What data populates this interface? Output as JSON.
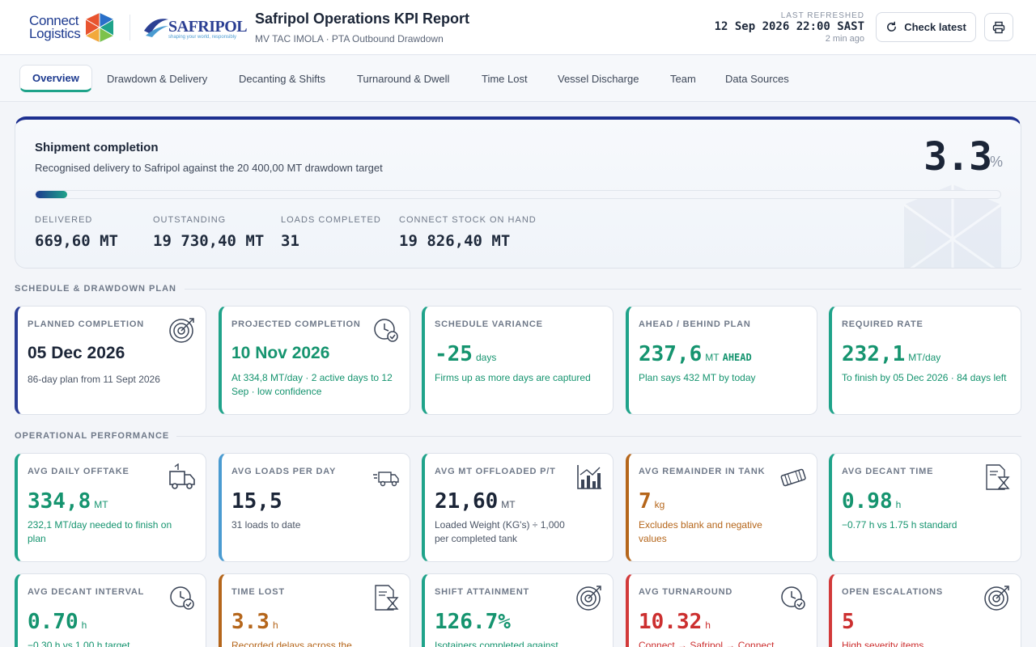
{
  "header": {
    "logo_connect": "Connect\nLogistics",
    "logo_safripol": "SAFRIPOL",
    "logo_safripol_tag": "shaping your world, responsibly",
    "title": "Safripol Operations KPI Report",
    "subtitle": "MV TAC IMOLA · PTA Outbound Drawdown",
    "refresh_label": "LAST REFRESHED",
    "refresh_time": "12 Sep 2026 22:00 SAST",
    "refresh_ago": "2 min ago",
    "check_latest": "Check latest",
    "print_icon": "printer-icon",
    "check_icon": "refresh-icon"
  },
  "tabs": [
    {
      "label": "Overview",
      "active": true
    },
    {
      "label": "Drawdown & Delivery"
    },
    {
      "label": "Decanting & Shifts"
    },
    {
      "label": "Turnaround & Dwell"
    },
    {
      "label": "Time Lost"
    },
    {
      "label": "Vessel Discharge"
    },
    {
      "label": "Team"
    },
    {
      "label": "Data Sources"
    }
  ],
  "hero": {
    "title": "Shipment completion",
    "description": "Recognised delivery to Safripol against the 20 400,00 MT drawdown target",
    "value": "3.3",
    "unit": "%",
    "progress_fraction": 0.033,
    "stats": [
      {
        "label": "DELIVERED",
        "value": "669,60 MT"
      },
      {
        "label": "OUTSTANDING",
        "value": "19 730,40 MT"
      },
      {
        "label": "LOADS COMPLETED",
        "value": "31"
      },
      {
        "label": "CONNECT STOCK ON HAND",
        "value": "19 826,40 MT"
      }
    ]
  },
  "sections": {
    "schedule": "SCHEDULE & DRAWDOWN PLAN",
    "operational": "OPERATIONAL PERFORMANCE"
  },
  "schedule_cards": [
    {
      "label": "PLANNED COMPLETION",
      "value": "05 Dec 2026",
      "unit": "",
      "note": "86-day plan from 11 Sept 2026",
      "icon": "target-icon"
    },
    {
      "label": "PROJECTED COMPLETION",
      "value": "10 Nov 2026",
      "unit": "",
      "note": "At 334,8 MT/day · 2 active days to 12 Sep · low confidence",
      "icon": "clock-check-icon"
    },
    {
      "label": "SCHEDULE VARIANCE",
      "value": "-25",
      "unit": "days",
      "note": "Firms up as more days are captured",
      "icon": ""
    },
    {
      "label": "AHEAD / BEHIND PLAN",
      "value": "237,6",
      "unit": "MT",
      "unit2": "AHEAD",
      "note": "Plan says 432 MT by today",
      "icon": ""
    },
    {
      "label": "REQUIRED RATE",
      "value": "232,1",
      "unit": "MT/day",
      "note": "To finish by 05 Dec 2026 · 84 days left",
      "icon": ""
    }
  ],
  "ops_cards_row1": [
    {
      "label": "AVG DAILY OFFTAKE",
      "value": "334,8",
      "unit": "MT",
      "note": "232,1 MT/day needed to finish on plan",
      "icon": "truck-loading-icon"
    },
    {
      "label": "AVG LOADS PER DAY",
      "value": "15,5",
      "unit": "",
      "note": "31 loads to date",
      "icon": "fast-truck-icon"
    },
    {
      "label": "AVG MT OFFLOADED P/T",
      "value": "21,60",
      "unit": "MT",
      "note": "Loaded Weight (KG's) ÷ 1,000 per completed tank",
      "icon": "chart-icon"
    },
    {
      "label": "AVG REMAINDER IN TANK",
      "value": "7",
      "unit": "kg",
      "note": "Excludes blank and negative values",
      "icon": "tank-icon"
    },
    {
      "label": "AVG DECANT TIME",
      "value": "0.98",
      "unit": "h",
      "note": "−0.77 h vs 1.75 h standard",
      "icon": "hourglass-doc-icon"
    }
  ],
  "ops_cards_row2": [
    {
      "label": "AVG DECANT INTERVAL",
      "value": "0.70",
      "unit": "h",
      "note": "−0.30 h vs 1.00 h target",
      "icon": "clock-check-icon"
    },
    {
      "label": "TIME LOST",
      "value": "3.3",
      "unit": "h",
      "note": "Recorded delays across the",
      "icon": "hourglass-doc-icon"
    },
    {
      "label": "SHIFT ATTAINMENT",
      "value": "126.7%",
      "unit": "",
      "note": "Isotainers completed against",
      "icon": "target-icon"
    },
    {
      "label": "AVG TURNAROUND",
      "value": "10.32",
      "unit": "h",
      "note": "Connect → Safripol → Connect",
      "icon": "clock-check-icon"
    },
    {
      "label": "OPEN ESCALATIONS",
      "value": "5",
      "unit": "",
      "note": "High severity items",
      "icon": "target-icon"
    }
  ],
  "colors": {
    "navy": "#1d2f8f",
    "green": "#1fa38a",
    "amber": "#b5661b",
    "red": "#d23a3a"
  }
}
